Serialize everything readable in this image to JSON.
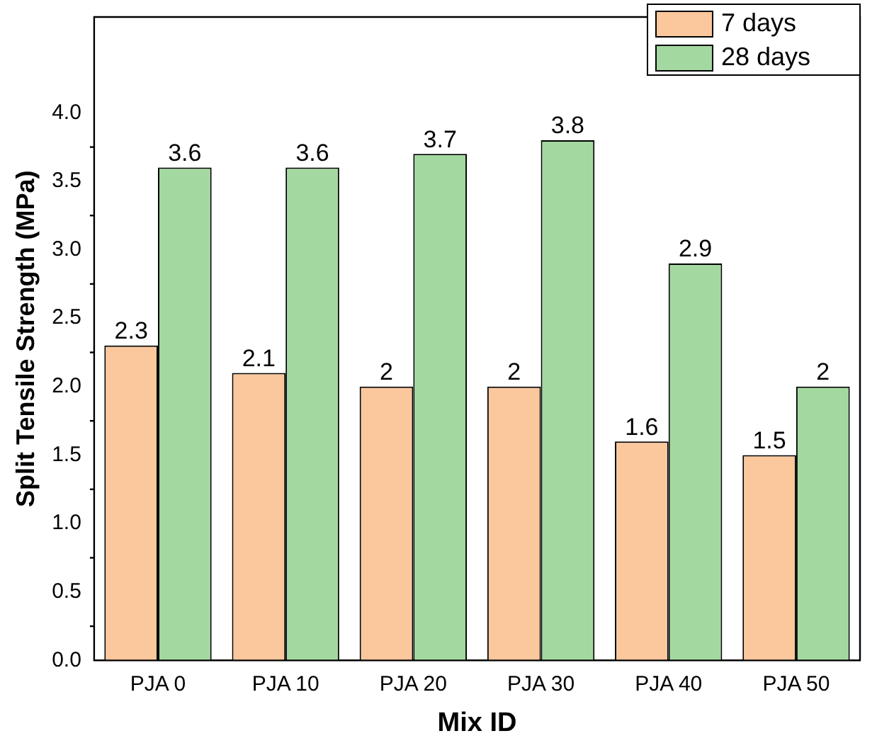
{
  "chart_data": {
    "type": "bar",
    "xlabel": "Mix ID",
    "ylabel": "Split Tensile Strength (MPa)",
    "categories": [
      "PJA 0",
      "PJA 10",
      "PJA 20",
      "PJA 30",
      "PJA 40",
      "PJA 50"
    ],
    "series": [
      {
        "name": "7 days",
        "color": "#fbc79c",
        "values": [
          2.3,
          2.1,
          2,
          2,
          1.6,
          1.5
        ]
      },
      {
        "name": "28 days",
        "color": "#a3d9a0",
        "values": [
          3.6,
          3.6,
          3.7,
          3.8,
          2.9,
          2
        ]
      }
    ],
    "ylim": [
      0,
      4.7
    ],
    "yticks": [
      {
        "value": 0,
        "label": "0.0"
      },
      {
        "value": 0.5,
        "label": "0.5"
      },
      {
        "value": 1,
        "label": "1.0"
      },
      {
        "value": 1.5,
        "label": "1.5"
      },
      {
        "value": 2,
        "label": "2.0"
      },
      {
        "value": 2.5,
        "label": "2.5"
      },
      {
        "value": 3,
        "label": "3.0"
      },
      {
        "value": 3.5,
        "label": "3.5"
      },
      {
        "value": 4,
        "label": "4.0"
      }
    ],
    "data_labels": true,
    "legend": "top right",
    "grid": false
  }
}
